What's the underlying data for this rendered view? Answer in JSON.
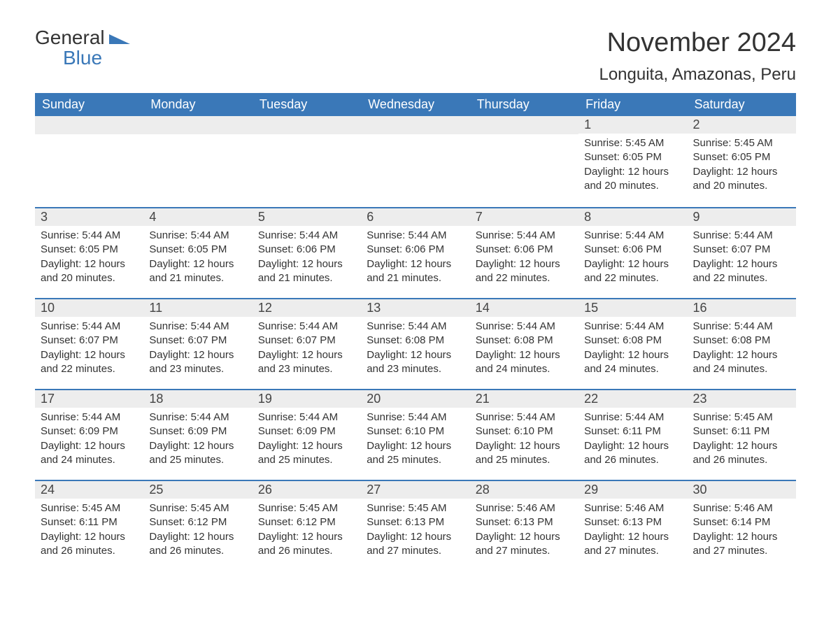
{
  "logo": {
    "word1": "General",
    "word2": "Blue",
    "tri_color": "#3a78b8"
  },
  "title": "November 2024",
  "location": "Longuita, Amazonas, Peru",
  "colors": {
    "header_bg": "#3a78b8",
    "header_text": "#ffffff",
    "daynum_bg": "#ededed",
    "border_top": "#3a78b8",
    "body_text": "#333333",
    "page_bg": "#ffffff"
  },
  "columns": [
    "Sunday",
    "Monday",
    "Tuesday",
    "Wednesday",
    "Thursday",
    "Friday",
    "Saturday"
  ],
  "weeks": [
    [
      null,
      null,
      null,
      null,
      null,
      {
        "n": "1",
        "sunrise": "5:45 AM",
        "sunset": "6:05 PM",
        "daylight": "12 hours and 20 minutes."
      },
      {
        "n": "2",
        "sunrise": "5:45 AM",
        "sunset": "6:05 PM",
        "daylight": "12 hours and 20 minutes."
      }
    ],
    [
      {
        "n": "3",
        "sunrise": "5:44 AM",
        "sunset": "6:05 PM",
        "daylight": "12 hours and 20 minutes."
      },
      {
        "n": "4",
        "sunrise": "5:44 AM",
        "sunset": "6:05 PM",
        "daylight": "12 hours and 21 minutes."
      },
      {
        "n": "5",
        "sunrise": "5:44 AM",
        "sunset": "6:06 PM",
        "daylight": "12 hours and 21 minutes."
      },
      {
        "n": "6",
        "sunrise": "5:44 AM",
        "sunset": "6:06 PM",
        "daylight": "12 hours and 21 minutes."
      },
      {
        "n": "7",
        "sunrise": "5:44 AM",
        "sunset": "6:06 PM",
        "daylight": "12 hours and 22 minutes."
      },
      {
        "n": "8",
        "sunrise": "5:44 AM",
        "sunset": "6:06 PM",
        "daylight": "12 hours and 22 minutes."
      },
      {
        "n": "9",
        "sunrise": "5:44 AM",
        "sunset": "6:07 PM",
        "daylight": "12 hours and 22 minutes."
      }
    ],
    [
      {
        "n": "10",
        "sunrise": "5:44 AM",
        "sunset": "6:07 PM",
        "daylight": "12 hours and 22 minutes."
      },
      {
        "n": "11",
        "sunrise": "5:44 AM",
        "sunset": "6:07 PM",
        "daylight": "12 hours and 23 minutes."
      },
      {
        "n": "12",
        "sunrise": "5:44 AM",
        "sunset": "6:07 PM",
        "daylight": "12 hours and 23 minutes."
      },
      {
        "n": "13",
        "sunrise": "5:44 AM",
        "sunset": "6:08 PM",
        "daylight": "12 hours and 23 minutes."
      },
      {
        "n": "14",
        "sunrise": "5:44 AM",
        "sunset": "6:08 PM",
        "daylight": "12 hours and 24 minutes."
      },
      {
        "n": "15",
        "sunrise": "5:44 AM",
        "sunset": "6:08 PM",
        "daylight": "12 hours and 24 minutes."
      },
      {
        "n": "16",
        "sunrise": "5:44 AM",
        "sunset": "6:08 PM",
        "daylight": "12 hours and 24 minutes."
      }
    ],
    [
      {
        "n": "17",
        "sunrise": "5:44 AM",
        "sunset": "6:09 PM",
        "daylight": "12 hours and 24 minutes."
      },
      {
        "n": "18",
        "sunrise": "5:44 AM",
        "sunset": "6:09 PM",
        "daylight": "12 hours and 25 minutes."
      },
      {
        "n": "19",
        "sunrise": "5:44 AM",
        "sunset": "6:09 PM",
        "daylight": "12 hours and 25 minutes."
      },
      {
        "n": "20",
        "sunrise": "5:44 AM",
        "sunset": "6:10 PM",
        "daylight": "12 hours and 25 minutes."
      },
      {
        "n": "21",
        "sunrise": "5:44 AM",
        "sunset": "6:10 PM",
        "daylight": "12 hours and 25 minutes."
      },
      {
        "n": "22",
        "sunrise": "5:44 AM",
        "sunset": "6:11 PM",
        "daylight": "12 hours and 26 minutes."
      },
      {
        "n": "23",
        "sunrise": "5:45 AM",
        "sunset": "6:11 PM",
        "daylight": "12 hours and 26 minutes."
      }
    ],
    [
      {
        "n": "24",
        "sunrise": "5:45 AM",
        "sunset": "6:11 PM",
        "daylight": "12 hours and 26 minutes."
      },
      {
        "n": "25",
        "sunrise": "5:45 AM",
        "sunset": "6:12 PM",
        "daylight": "12 hours and 26 minutes."
      },
      {
        "n": "26",
        "sunrise": "5:45 AM",
        "sunset": "6:12 PM",
        "daylight": "12 hours and 26 minutes."
      },
      {
        "n": "27",
        "sunrise": "5:45 AM",
        "sunset": "6:13 PM",
        "daylight": "12 hours and 27 minutes."
      },
      {
        "n": "28",
        "sunrise": "5:46 AM",
        "sunset": "6:13 PM",
        "daylight": "12 hours and 27 minutes."
      },
      {
        "n": "29",
        "sunrise": "5:46 AM",
        "sunset": "6:13 PM",
        "daylight": "12 hours and 27 minutes."
      },
      {
        "n": "30",
        "sunrise": "5:46 AM",
        "sunset": "6:14 PM",
        "daylight": "12 hours and 27 minutes."
      }
    ]
  ],
  "labels": {
    "sunrise": "Sunrise: ",
    "sunset": "Sunset: ",
    "daylight": "Daylight: "
  }
}
